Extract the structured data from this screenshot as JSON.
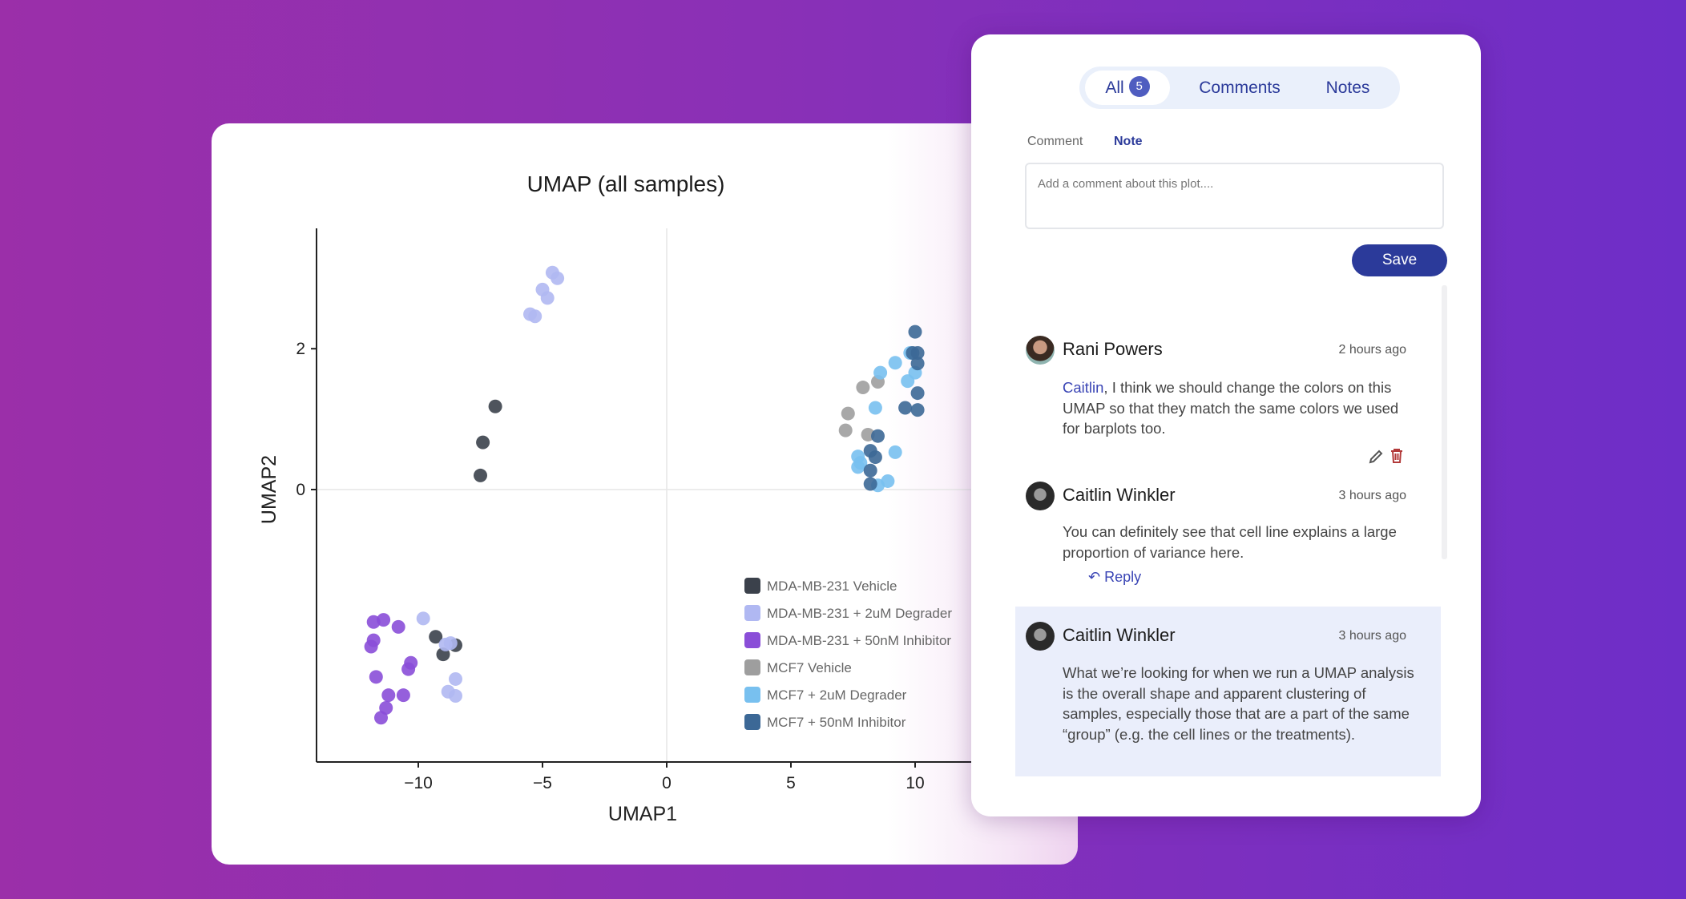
{
  "chart_data": {
    "type": "scatter",
    "title": "UMAP (all samples)",
    "xlabel": "UMAP1",
    "ylabel": "UMAP2",
    "xlim": [
      -14.1,
      14.1
    ],
    "ylim": [
      -3.88,
      3.71
    ],
    "xticks": [
      -10,
      -5,
      0,
      5,
      10
    ],
    "xtick_labels": [
      "−10",
      "−5",
      "0",
      "5",
      "10"
    ],
    "yticks": [
      0,
      2
    ],
    "ytick_labels": [
      "0",
      "2"
    ],
    "grid": "zero-lines only",
    "legend_position": "bottom-right",
    "series": [
      {
        "name": "MDA-MB-231 Vehicle",
        "color": "#3b414b",
        "points": [
          [
            -6.9,
            1.18
          ],
          [
            -7.4,
            0.67
          ],
          [
            -7.5,
            0.2
          ],
          [
            -9.3,
            -2.09
          ],
          [
            -9.0,
            -2.34
          ],
          [
            -8.5,
            -2.21
          ]
        ]
      },
      {
        "name": "MDA-MB-231 + 2uM Degrader",
        "color": "#b0b8f2",
        "points": [
          [
            -4.6,
            3.08
          ],
          [
            -4.4,
            3.0
          ],
          [
            -5.0,
            2.84
          ],
          [
            -4.8,
            2.72
          ],
          [
            -5.5,
            2.49
          ],
          [
            -5.3,
            2.46
          ],
          [
            -9.8,
            -1.83
          ],
          [
            -8.9,
            -2.2
          ],
          [
            -8.7,
            -2.18
          ],
          [
            -8.5,
            -2.69
          ],
          [
            -8.8,
            -2.87
          ],
          [
            -8.5,
            -2.93
          ]
        ]
      },
      {
        "name": "MDA-MB-231 + 50nM Inhibitor",
        "color": "#8a4ed8",
        "points": [
          [
            -11.8,
            -1.88
          ],
          [
            -11.4,
            -1.85
          ],
          [
            -10.8,
            -1.95
          ],
          [
            -11.8,
            -2.14
          ],
          [
            -11.9,
            -2.23
          ],
          [
            -10.3,
            -2.46
          ],
          [
            -10.4,
            -2.55
          ],
          [
            -11.7,
            -2.66
          ],
          [
            -11.2,
            -2.92
          ],
          [
            -10.6,
            -2.92
          ],
          [
            -11.3,
            -3.1
          ],
          [
            -11.5,
            -3.24
          ]
        ]
      },
      {
        "name": "MCF7 Vehicle",
        "color": "#9e9e9e",
        "points": [
          [
            7.9,
            1.45
          ],
          [
            8.5,
            1.53
          ],
          [
            7.3,
            1.08
          ],
          [
            7.2,
            0.84
          ],
          [
            8.1,
            0.78
          ]
        ]
      },
      {
        "name": "MCF7 + 2uM Degrader",
        "color": "#78c0ef",
        "points": [
          [
            8.6,
            1.66
          ],
          [
            9.2,
            1.8
          ],
          [
            9.8,
            1.94
          ],
          [
            10.0,
            1.66
          ],
          [
            9.7,
            1.54
          ],
          [
            8.4,
            1.16
          ],
          [
            9.2,
            0.53
          ],
          [
            7.7,
            0.47
          ],
          [
            7.8,
            0.38
          ],
          [
            7.7,
            0.32
          ],
          [
            8.5,
            0.06
          ],
          [
            8.9,
            0.12
          ]
        ]
      },
      {
        "name": "MCF7 + 50nM Inhibitor",
        "color": "#3c6896",
        "points": [
          [
            10.0,
            2.24
          ],
          [
            9.9,
            1.94
          ],
          [
            10.1,
            1.94
          ],
          [
            10.1,
            1.79
          ],
          [
            10.1,
            1.37
          ],
          [
            9.6,
            1.16
          ],
          [
            10.1,
            1.13
          ],
          [
            8.5,
            0.76
          ],
          [
            8.2,
            0.55
          ],
          [
            8.4,
            0.46
          ],
          [
            8.2,
            0.27
          ],
          [
            8.2,
            0.08
          ]
        ]
      }
    ]
  },
  "panel": {
    "tabs": [
      {
        "label": "All",
        "count": "5"
      },
      {
        "label": "Comments"
      },
      {
        "label": "Notes"
      }
    ],
    "mode_comment": "Comment",
    "mode_note": "Note",
    "input_placeholder": "Add a comment about this plot....",
    "save_label": "Save",
    "reply_label": "Reply",
    "comments": [
      {
        "author": "Rani Powers",
        "time": "2 hours ago",
        "mention": "Caitlin",
        "text": ", I think we should change the colors on this UMAP so that they match the same colors we used for barplots too."
      },
      {
        "author": "Caitlin Winkler",
        "time": "3 hours ago",
        "text": "You can definitely see that cell line explains a large proportion of variance here."
      },
      {
        "author": "Caitlin Winkler",
        "time": "3 hours ago",
        "text": "What we’re looking for when we run a UMAP analysis is the overall shape and apparent clustering of samples, especially those that are a part of the same “group” (e.g. the cell lines or the treatments)."
      }
    ],
    "colors": {
      "accent": "#2b3a9a",
      "highlight": "#eaeefb",
      "delete": "#b23a3a"
    }
  }
}
